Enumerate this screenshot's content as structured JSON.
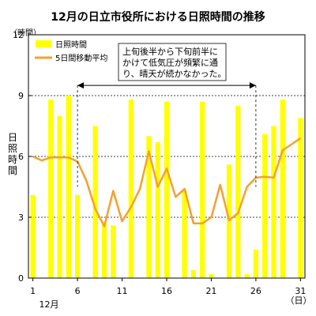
{
  "chart_data": {
    "type": "bar",
    "title": "12月の日立市役所における日照時間の推移",
    "ylabel": "日照時間",
    "ylabel_unit": "（時間）",
    "x_unit": "（日）",
    "x_month_label": "12月",
    "x": [
      1,
      2,
      3,
      4,
      5,
      6,
      7,
      8,
      9,
      10,
      11,
      12,
      13,
      14,
      15,
      16,
      17,
      18,
      19,
      20,
      21,
      22,
      23,
      24,
      25,
      26,
      27,
      28,
      29,
      30,
      31
    ],
    "xlim": [
      1,
      31
    ],
    "x_ticks": [
      "1",
      "6",
      "11",
      "16",
      "21",
      "26",
      "31"
    ],
    "ylim": [
      0,
      12
    ],
    "y_ticks": [
      "0",
      "3",
      "6",
      "9",
      "12"
    ],
    "grid": "y-dashed",
    "legend_position": "top-left",
    "series": [
      {
        "name": "日照時間",
        "type": "bar",
        "color": "#FFFF00",
        "values": [
          4.1,
          0,
          8.8,
          8.0,
          9.0,
          4.1,
          0,
          7.5,
          2.8,
          2.6,
          0,
          8.8,
          0,
          7.0,
          6.7,
          8.7,
          0,
          4.3,
          0.4,
          8.7,
          0.2,
          0,
          5.6,
          8.5,
          0.2,
          1.4,
          7.1,
          7.5,
          8.8,
          0,
          7.9
        ]
      },
      {
        "name": "5日間移動平均",
        "type": "line",
        "color": "#F5A030",
        "values": [
          6.0,
          5.8,
          5.95,
          5.95,
          5.95,
          5.75,
          4.8,
          3.4,
          2.55,
          4.3,
          2.8,
          3.5,
          4.4,
          6.25,
          4.5,
          5.4,
          4.0,
          4.4,
          2.7,
          2.7,
          3.0,
          4.6,
          2.85,
          3.2,
          4.5,
          4.95,
          5.0,
          4.95,
          6.3,
          6.6,
          6.9
        ]
      }
    ],
    "annotation": {
      "lines": [
        "上旬後半から下旬前半に",
        "かけて低気圧が頻繁に通",
        "り、晴天が続かなかった。"
      ],
      "span_start_day": 6,
      "span_end_day": 26,
      "span_y": 9.5
    }
  }
}
